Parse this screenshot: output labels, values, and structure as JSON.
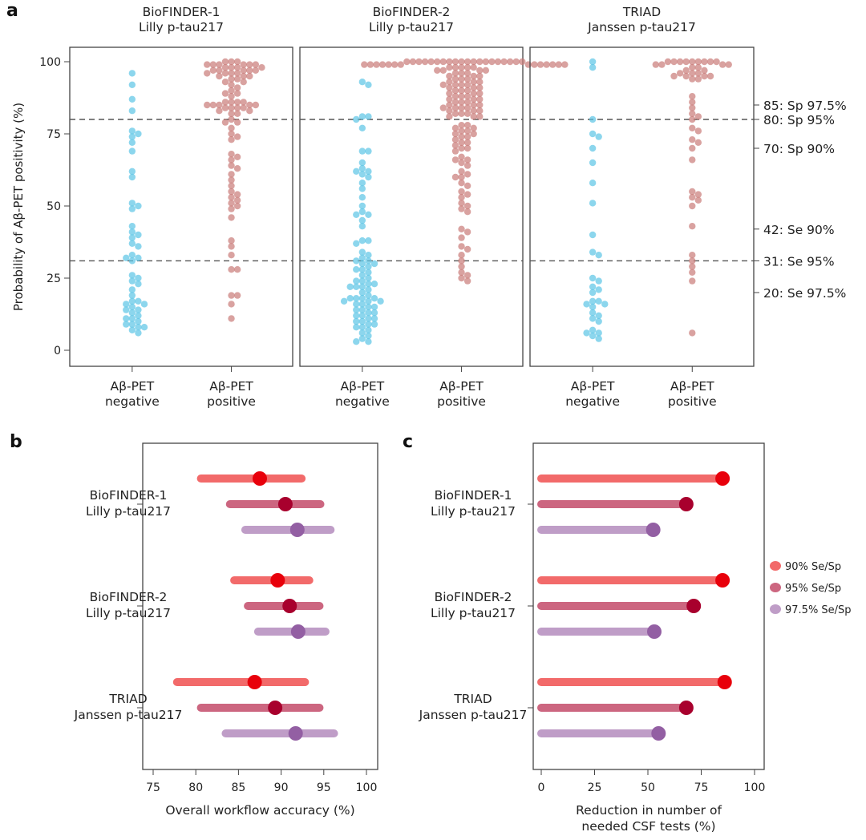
{
  "figure": {
    "panel_labels": [
      "a",
      "b",
      "c"
    ]
  },
  "chart_data": [
    {
      "type": "scatter",
      "subtype": "beeswarm",
      "panel": "a",
      "ylabel": "Probability of Aβ-PET positivity (%)",
      "ylim": [
        -5,
        105
      ],
      "yticks": [
        0,
        25,
        50,
        75,
        100
      ],
      "categories": [
        "Aβ-PET\nnegative",
        "Aβ-PET\npositive"
      ],
      "category_lines": [
        [
          "Aβ-PET",
          "negative"
        ],
        [
          "Aβ-PET",
          "positive"
        ]
      ],
      "colors": {
        "negative": "#5bc4e6",
        "positive": "#c97a78",
        "threshold_line": "#555555"
      },
      "thresholds": [
        80,
        31
      ],
      "right_annotations": [
        {
          "value": 85,
          "label": "85: Sp 97.5%"
        },
        {
          "value": 80,
          "label": "80: Sp 95%"
        },
        {
          "value": 70,
          "label": "70: Sp 90%"
        },
        {
          "value": 42,
          "label": "42: Se 90%"
        },
        {
          "value": 31,
          "label": "31: Se 95%"
        },
        {
          "value": 20,
          "label": "20: Se 97.5%"
        }
      ],
      "facets": [
        {
          "title": [
            "BioFINDER-1",
            "Lilly p-tau217"
          ],
          "negative": [
            96,
            92,
            87,
            83,
            76,
            75,
            74,
            72,
            69,
            62,
            60,
            51,
            50,
            49,
            43,
            41,
            40,
            39,
            37,
            36,
            33,
            32,
            32,
            31,
            26,
            25,
            24,
            23,
            21,
            19,
            17,
            17,
            16,
            16,
            15,
            14,
            14,
            13,
            12,
            11,
            11,
            10,
            9,
            9,
            8,
            8,
            7,
            6
          ],
          "positive": [
            100,
            100,
            100,
            99,
            99,
            99,
            99,
            99,
            99,
            98,
            98,
            98,
            98,
            97,
            97,
            97,
            97,
            97,
            96,
            96,
            96,
            96,
            95,
            95,
            95,
            94,
            94,
            93,
            93,
            92,
            91,
            90,
            89,
            89,
            88,
            86,
            86,
            86,
            86,
            85,
            85,
            85,
            85,
            85,
            84,
            84,
            84,
            84,
            83,
            83,
            82,
            82,
            80,
            79,
            79,
            77,
            75,
            74,
            73,
            68,
            67,
            66,
            64,
            63,
            61,
            59,
            57,
            55,
            54,
            53,
            52,
            51,
            50,
            49,
            46,
            38,
            36,
            33,
            28,
            28,
            19,
            19,
            16,
            11
          ]
        },
        {
          "title": [
            "BioFINDER-2",
            "Lilly p-tau217"
          ],
          "negative": [
            93,
            92,
            81,
            81,
            80,
            77,
            69,
            69,
            65,
            63,
            62,
            62,
            61,
            60,
            58,
            56,
            53,
            50,
            48,
            47,
            47,
            45,
            43,
            38,
            38,
            37,
            34,
            33,
            32,
            31,
            31,
            30,
            30,
            29,
            28,
            28,
            27,
            26,
            25,
            24,
            24,
            23,
            23,
            22,
            22,
            22,
            21,
            20,
            19,
            18,
            18,
            18,
            18,
            17,
            17,
            17,
            16,
            16,
            15,
            15,
            14,
            14,
            13,
            13,
            12,
            12,
            11,
            11,
            10,
            10,
            9,
            9,
            8,
            8,
            7,
            6,
            5,
            4,
            3,
            3
          ],
          "positive": [
            100,
            100,
            100,
            100,
            100,
            100,
            100,
            100,
            100,
            100,
            100,
            100,
            100,
            100,
            100,
            100,
            100,
            100,
            100,
            100,
            99,
            99,
            99,
            99,
            99,
            99,
            99,
            99,
            99,
            99,
            99,
            99,
            99,
            99,
            98,
            98,
            98,
            98,
            98,
            97,
            97,
            97,
            97,
            96,
            96,
            96,
            95,
            95,
            95,
            94,
            94,
            94,
            93,
            93,
            93,
            92,
            92,
            92,
            92,
            91,
            91,
            91,
            90,
            90,
            90,
            89,
            89,
            89,
            88,
            88,
            88,
            87,
            87,
            87,
            86,
            86,
            86,
            85,
            85,
            85,
            84,
            84,
            84,
            84,
            83,
            83,
            83,
            82,
            82,
            82,
            81,
            81,
            81,
            78,
            78,
            77,
            77,
            76,
            76,
            75,
            75,
            74,
            74,
            73,
            72,
            72,
            71,
            70,
            70,
            69,
            67,
            66,
            66,
            65,
            64,
            62,
            61,
            60,
            60,
            58,
            57,
            55,
            54,
            53,
            51,
            50,
            49,
            48,
            42,
            41,
            39,
            36,
            35,
            33,
            31,
            29,
            27,
            26,
            25,
            24
          ]
        },
        {
          "title": [
            "TRIAD",
            "Janssen p-tau217"
          ],
          "negative": [
            100,
            98,
            80,
            75,
            74,
            70,
            65,
            58,
            51,
            40,
            34,
            33,
            25,
            24,
            22,
            21,
            20,
            17,
            17,
            16,
            16,
            15,
            13,
            12,
            11,
            10,
            7,
            6,
            6,
            5,
            4
          ],
          "positive": [
            100,
            100,
            100,
            100,
            100,
            100,
            100,
            100,
            100,
            99,
            99,
            99,
            99,
            98,
            98,
            97,
            97,
            96,
            96,
            96,
            95,
            95,
            95,
            95,
            94,
            94,
            88,
            86,
            84,
            82,
            81,
            80,
            77,
            76,
            73,
            72,
            70,
            66,
            55,
            54,
            53,
            52,
            50,
            43,
            33,
            31,
            29,
            27,
            24,
            6
          ]
        }
      ]
    },
    {
      "type": "interval",
      "panel": "b",
      "xlabel": "Overall workflow accuracy (%)",
      "xlim": [
        74,
        101
      ],
      "xticks": [
        75,
        80,
        85,
        90,
        95,
        100
      ],
      "categories": [
        [
          "BioFINDER-1",
          "Lilly p-tau217"
        ],
        [
          "BioFINDER-2",
          "Lilly p-tau217"
        ],
        [
          "TRIAD",
          "Janssen p-tau217"
        ]
      ],
      "series": [
        {
          "name": "90% Se/Sp",
          "bar_color": "#f26a6a",
          "dot_color": "#e8000b",
          "estimates": [
            87.5,
            89.6,
            86.9
          ],
          "lower": [
            80.6,
            84.5,
            77.8
          ],
          "upper": [
            92.4,
            93.3,
            92.8
          ]
        },
        {
          "name": "95% Se/Sp",
          "bar_color": "#cc6680",
          "dot_color": "#a8002d",
          "estimates": [
            90.5,
            91.0,
            89.3
          ],
          "lower": [
            84.0,
            86.1,
            80.6
          ],
          "upper": [
            94.6,
            94.5,
            94.5
          ]
        },
        {
          "name": "97.5% Se/Sp",
          "bar_color": "#bf9dc7",
          "dot_color": "#935fa3",
          "estimates": [
            91.9,
            92.0,
            91.7
          ],
          "lower": [
            85.8,
            87.3,
            83.5
          ],
          "upper": [
            95.8,
            95.2,
            96.2
          ]
        }
      ]
    },
    {
      "type": "bar",
      "subtype": "lollipop",
      "panel": "c",
      "xlabel": [
        "Reduction in number of",
        "needed CSF tests (%)"
      ],
      "xlim": [
        -3,
        104
      ],
      "xticks": [
        0,
        25,
        50,
        75,
        100
      ],
      "categories": [
        [
          "BioFINDER-1",
          "Lilly p-tau217"
        ],
        [
          "BioFINDER-2",
          "Lilly p-tau217"
        ],
        [
          "TRIAD",
          "Janssen p-tau217"
        ]
      ],
      "series": [
        {
          "name": "90% Se/Sp",
          "bar_color": "#f26a6a",
          "dot_color": "#e8000b",
          "values": [
            85,
            85,
            86
          ]
        },
        {
          "name": "95% Se/Sp",
          "bar_color": "#cc6680",
          "dot_color": "#a8002d",
          "values": [
            68,
            71.5,
            68
          ]
        },
        {
          "name": "97.5% Se/Sp",
          "bar_color": "#bf9dc7",
          "dot_color": "#935fa3",
          "values": [
            52.5,
            53,
            55
          ]
        }
      ],
      "legend": {
        "placement": "right",
        "entries": [
          {
            "label": "90% Se/Sp",
            "color": "#f26a6a"
          },
          {
            "label": "95% Se/Sp",
            "color": "#cc6680"
          },
          {
            "label": "97.5% Se/Sp",
            "color": "#bf9dc7"
          }
        ]
      }
    }
  ]
}
